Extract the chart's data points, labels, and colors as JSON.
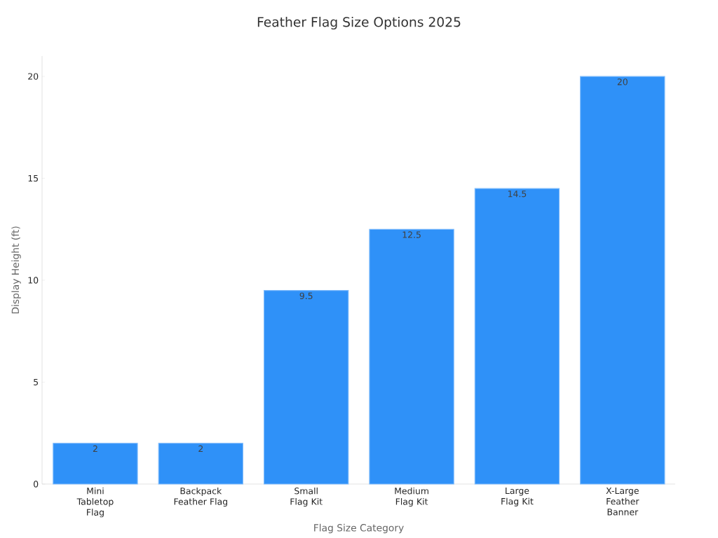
{
  "chart_data": {
    "type": "bar",
    "title": "Feather Flag Size Options 2025",
    "xlabel": "Flag Size Category",
    "ylabel": "Display Height (ft)",
    "categories": [
      "Mini Tabletop Flag",
      "Backpack Feather Flag",
      "Small Flag Kit",
      "Medium Flag Kit",
      "Large Flag Kit",
      "X-Large Feather Banner"
    ],
    "values": [
      2,
      2,
      9.5,
      12.5,
      14.5,
      20
    ],
    "color": "#2f91f8",
    "ylim": [
      0,
      21
    ],
    "yticks": [
      0,
      5,
      10,
      15,
      20
    ],
    "grid": false,
    "data_labels": true
  }
}
